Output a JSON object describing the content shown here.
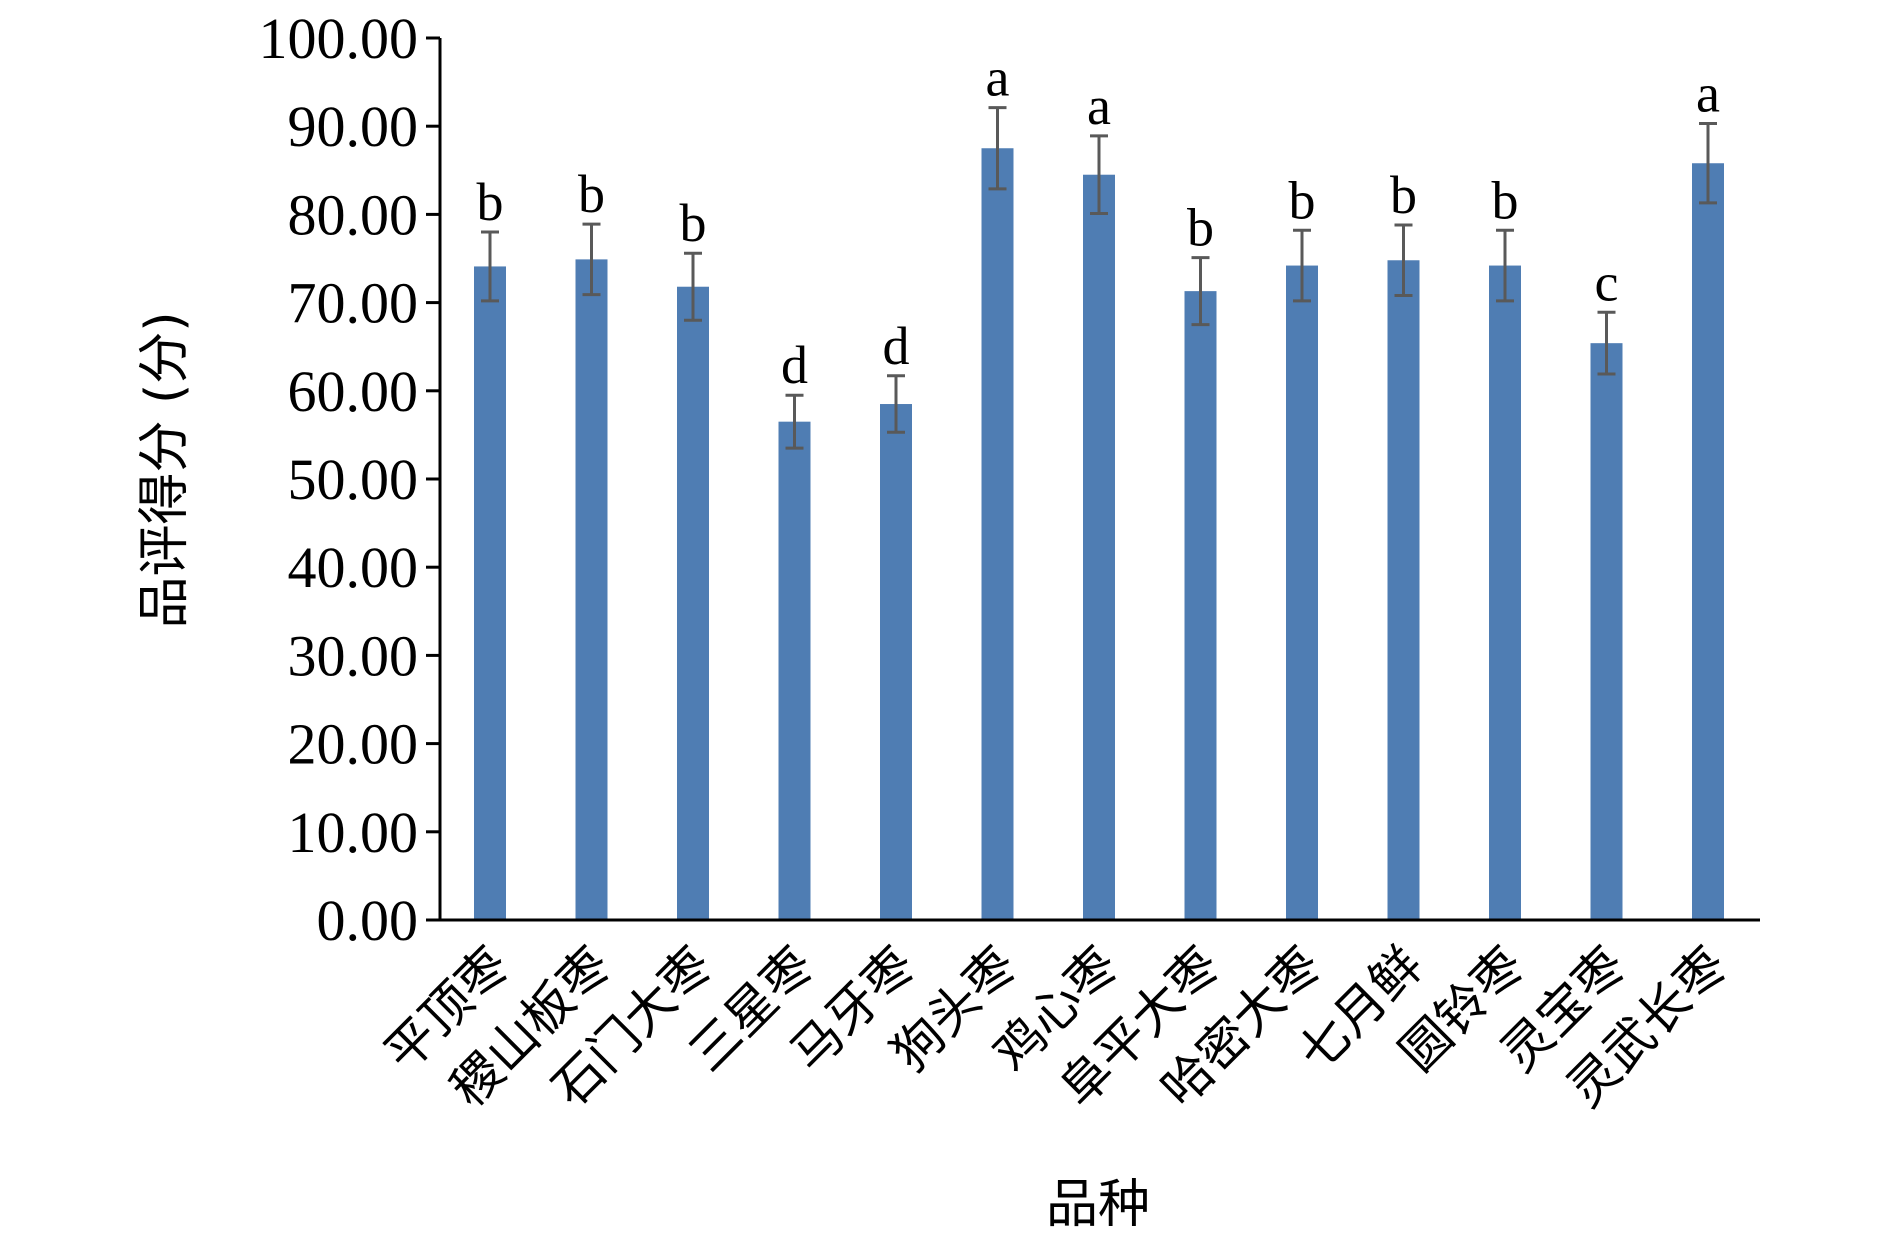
{
  "chart_data": {
    "type": "bar",
    "title": "",
    "xlabel": "品种",
    "ylabel": "品评得分 (分)",
    "ylim": [
      0,
      100
    ],
    "ytick_step": 10,
    "ytick_decimals": 2,
    "grid": false,
    "categories": [
      "平顶枣",
      "稷山板枣",
      "石门大枣",
      "三星枣",
      "马牙枣",
      "狗头枣",
      "鸡心枣",
      "阜平大枣",
      "哈密大枣",
      "七月鲜",
      "圆铃枣",
      "灵宝枣",
      "灵武长枣"
    ],
    "values": [
      74.1,
      74.9,
      71.8,
      56.5,
      58.5,
      87.5,
      84.5,
      71.3,
      74.2,
      74.8,
      74.2,
      65.4,
      85.8
    ],
    "errors": [
      3.9,
      4.0,
      3.8,
      3.0,
      3.2,
      4.6,
      4.4,
      3.8,
      4.0,
      4.0,
      4.0,
      3.5,
      4.5
    ],
    "significance": [
      "b",
      "b",
      "b",
      "d",
      "d",
      "a",
      "a",
      "b",
      "b",
      "b",
      "b",
      "c",
      "a"
    ],
    "bar_color": "#4f7db3",
    "error_color": "#595959"
  }
}
